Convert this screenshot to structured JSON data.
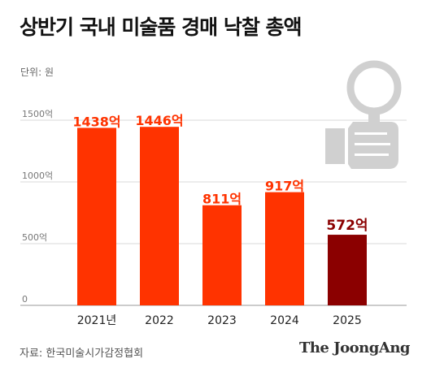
{
  "header": {
    "title": "상반기 국내 미술품 경매 낙찰 총액",
    "unit": "단위: 원"
  },
  "footer": {
    "source": "자료: 한국미술시가감정협회",
    "brand": "The JoongAng"
  },
  "colors": {
    "bar": "#ff3300",
    "bar_highlight": "#8b0000",
    "grid": "#d9d9d9",
    "icon": "#d0d0d0"
  },
  "icon": "magnifier-hand-icon",
  "chart_data": {
    "type": "bar",
    "categories": [
      "2021년",
      "2022",
      "2023",
      "2024",
      "2025"
    ],
    "values": [
      1438,
      1446,
      811,
      917,
      572
    ],
    "value_labels": [
      "1438억",
      "1446억",
      "811억",
      "917억",
      "572억"
    ],
    "highlight_index": 4,
    "yticks": [
      0,
      500,
      1000,
      1500
    ],
    "ytick_labels": [
      "0",
      "500억",
      "1000억",
      "1500억"
    ],
    "ylim": [
      0,
      1500
    ],
    "grid": true
  }
}
